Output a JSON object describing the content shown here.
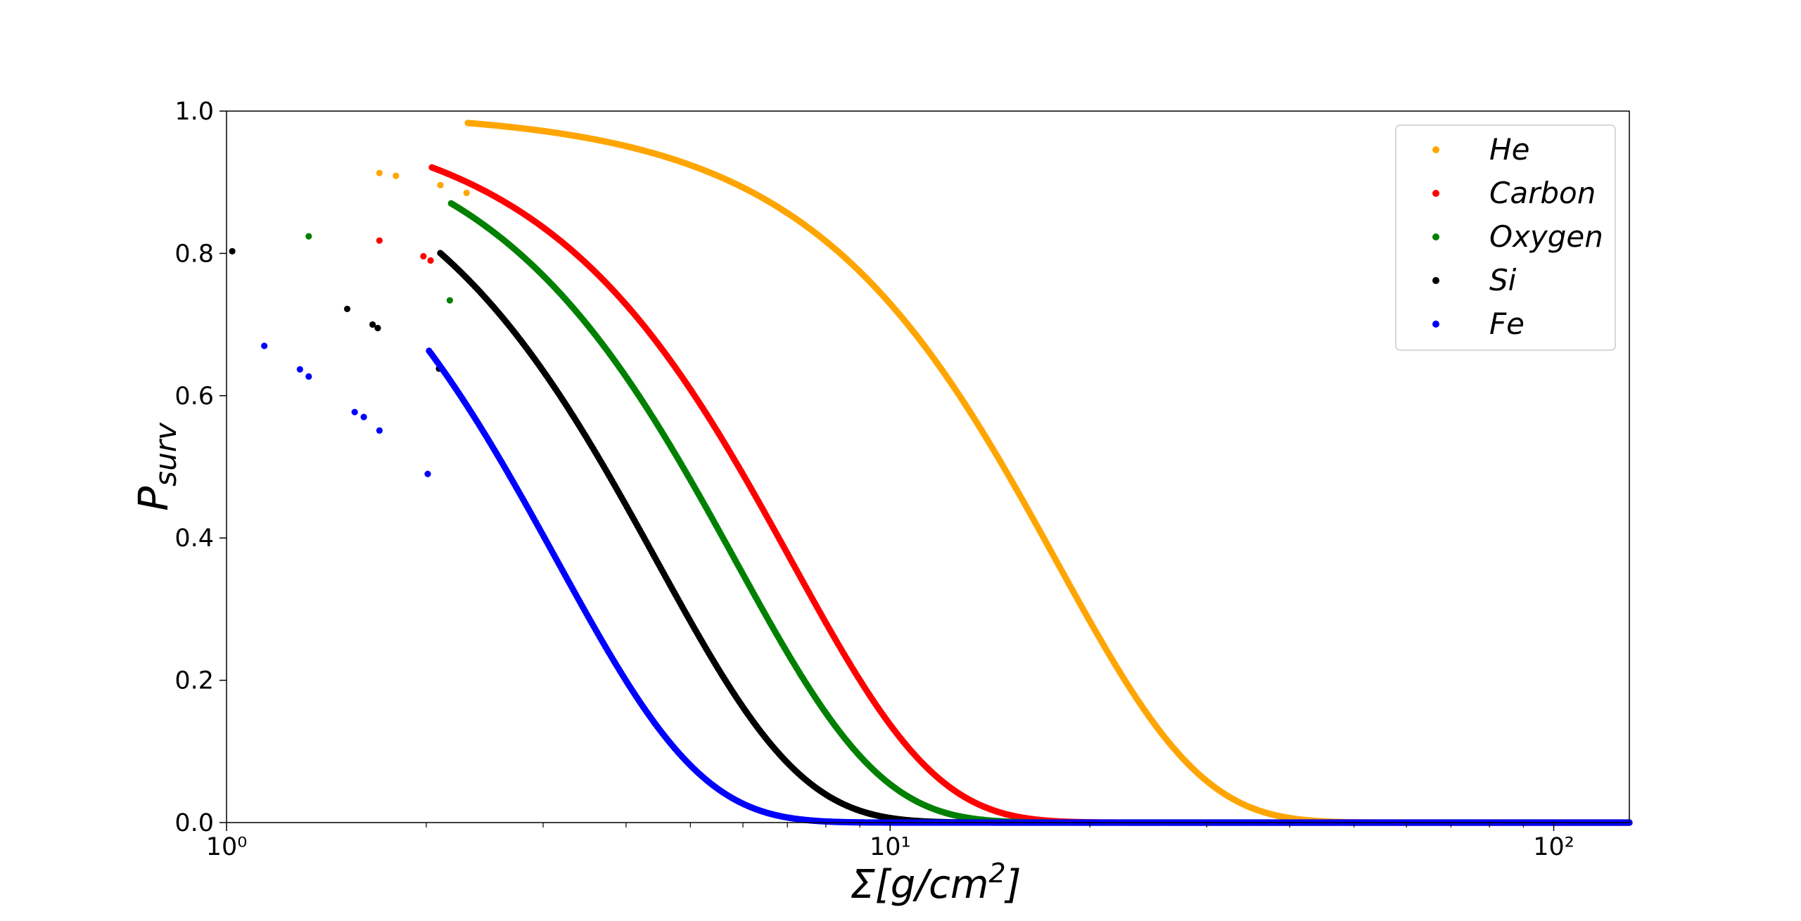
{
  "chart_data": {
    "type": "scatter",
    "title": "",
    "xlabel": "Σ[g/cm²]",
    "ylabel": "P_surv",
    "xscale": "log",
    "xlim": [
      1,
      130
    ],
    "ylim": [
      0,
      1
    ],
    "grid": false,
    "legend_position": "top-right",
    "x_tick_labels": [
      "10⁰",
      "10¹",
      "10²"
    ],
    "y_tick_labels": [
      "0.0",
      "0.2",
      "0.4",
      "0.6",
      "0.8",
      "1.0"
    ],
    "series": [
      {
        "name": "He",
        "color": "#FFA500",
        "lambda": 17.8,
        "x": [
          1.7,
          1.8,
          2.1,
          2.3,
          2.4,
          2.5,
          2.6,
          2.7,
          2.9,
          3.0,
          3.1,
          3.3,
          3.5,
          3.7,
          3.9,
          4.2,
          4.5,
          5,
          5.5,
          6,
          7,
          8,
          9,
          10,
          12,
          14,
          16,
          18,
          20,
          25,
          30,
          35,
          40,
          50,
          60,
          70,
          80,
          100,
          130
        ],
        "first_points": [
          [
            1.7,
            0.913
          ],
          [
            1.8,
            0.909
          ],
          [
            2.1,
            0.896
          ],
          [
            2.3,
            0.885
          ]
        ]
      },
      {
        "name": "Carbon",
        "color": "#FF0000",
        "lambda": 7.1,
        "x": [
          1.7,
          1.98,
          2.03,
          2.2,
          2.27,
          2.4,
          2.45,
          2.6,
          2.8,
          3.0,
          3.3,
          3.6,
          3.9,
          4.3,
          4.7,
          5.2,
          6,
          7,
          8,
          9,
          10,
          12,
          14,
          17,
          20,
          25,
          30,
          35,
          40,
          50,
          60,
          80,
          100,
          130
        ],
        "first_points": [
          [
            1.7,
            0.818
          ],
          [
            1.98,
            0.796
          ],
          [
            2.03,
            0.79
          ]
        ]
      },
      {
        "name": "Oxygen",
        "color": "#008000",
        "lambda": 5.85,
        "x": [
          1.33,
          2.17,
          2.4,
          2.5,
          2.6,
          2.75,
          3.0,
          3.3,
          3.6,
          4.0,
          4.5,
          5,
          6,
          7,
          8,
          9,
          10,
          12,
          14,
          17,
          20,
          25,
          30,
          35,
          40,
          50,
          60,
          80,
          100,
          130
        ],
        "first_points": [
          [
            1.33,
            0.824
          ],
          [
            2.17,
            0.734
          ]
        ]
      },
      {
        "name": "Si",
        "color": "#000000",
        "lambda": 4.45,
        "x": [
          1.02,
          1.52,
          1.66,
          1.69,
          2.09,
          2.4,
          2.6,
          2.8,
          3.0,
          3.3,
          3.6,
          4.0,
          4.5,
          5,
          6,
          7,
          8,
          9,
          10,
          12,
          14,
          17,
          20,
          25,
          30,
          35,
          40,
          50,
          60,
          80,
          100,
          130
        ],
        "first_points": [
          [
            1.02,
            0.803
          ],
          [
            1.52,
            0.722
          ],
          [
            1.66,
            0.7
          ],
          [
            1.69,
            0.695
          ],
          [
            2.09,
            0.638
          ]
        ]
      },
      {
        "name": "Fe",
        "color": "#0000FF",
        "lambda": 3.15,
        "x": [
          1.14,
          1.29,
          1.33,
          1.56,
          1.61,
          1.7,
          2.01,
          2.12,
          2.25,
          2.4,
          2.6,
          2.8,
          3.0,
          3.3,
          3.6,
          4.0,
          4.5,
          5,
          6,
          7,
          8,
          9,
          10,
          12,
          14,
          17,
          20,
          25,
          30,
          40,
          50,
          60,
          80,
          100,
          130
        ],
        "first_points": [
          [
            1.14,
            0.67
          ],
          [
            1.29,
            0.637
          ],
          [
            1.33,
            0.627
          ],
          [
            1.56,
            0.577
          ],
          [
            1.61,
            0.57
          ],
          [
            1.7,
            0.551
          ],
          [
            2.01,
            0.49
          ]
        ]
      }
    ]
  }
}
